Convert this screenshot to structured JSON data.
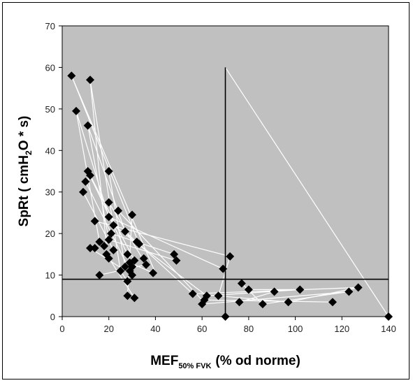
{
  "chart_data": {
    "type": "scatter",
    "xlabel_main": "MEF",
    "xlabel_sub": "50% FVK",
    "xlabel_rest": "(% od norme)",
    "ylabel_pre": "SpRt ( cmH",
    "ylabel_sub": "2",
    "ylabel_post": "O * s)",
    "xlim": [
      0,
      140
    ],
    "ylim": [
      0,
      70
    ],
    "xticks": [
      "0",
      "20",
      "40",
      "60",
      "80",
      "100",
      "120",
      "140"
    ],
    "yticks": [
      "0",
      "10",
      "20",
      "30",
      "40",
      "50",
      "60",
      "70"
    ],
    "grid": false,
    "background_color": "#c0c0c0",
    "marker_color": "#000000",
    "connector_color": "#ffffff",
    "reference_lines": {
      "vertical_x": 70,
      "horizontal_y": 9
    },
    "points": [
      {
        "x": 4,
        "y": 58
      },
      {
        "x": 6,
        "y": 49.5
      },
      {
        "x": 12,
        "y": 57
      },
      {
        "x": 11,
        "y": 46
      },
      {
        "x": 10,
        "y": 32.5
      },
      {
        "x": 9,
        "y": 30
      },
      {
        "x": 11,
        "y": 35
      },
      {
        "x": 12,
        "y": 34
      },
      {
        "x": 20,
        "y": 35
      },
      {
        "x": 20,
        "y": 27.5
      },
      {
        "x": 24,
        "y": 25.5
      },
      {
        "x": 30,
        "y": 24.5
      },
      {
        "x": 14,
        "y": 23
      },
      {
        "x": 20,
        "y": 24
      },
      {
        "x": 22,
        "y": 22
      },
      {
        "x": 27,
        "y": 20.5
      },
      {
        "x": 14,
        "y": 16.5
      },
      {
        "x": 16,
        "y": 18
      },
      {
        "x": 18,
        "y": 17
      },
      {
        "x": 20,
        "y": 18.5
      },
      {
        "x": 21,
        "y": 20
      },
      {
        "x": 12,
        "y": 16.5
      },
      {
        "x": 19,
        "y": 15
      },
      {
        "x": 20,
        "y": 14
      },
      {
        "x": 16,
        "y": 10
      },
      {
        "x": 22,
        "y": 16
      },
      {
        "x": 25,
        "y": 11
      },
      {
        "x": 27,
        "y": 12
      },
      {
        "x": 28,
        "y": 15
      },
      {
        "x": 29,
        "y": 13
      },
      {
        "x": 30,
        "y": 12
      },
      {
        "x": 31,
        "y": 13.5
      },
      {
        "x": 32,
        "y": 18
      },
      {
        "x": 33,
        "y": 17.5
      },
      {
        "x": 30,
        "y": 10
      },
      {
        "x": 28,
        "y": 8.5
      },
      {
        "x": 29,
        "y": 11
      },
      {
        "x": 35,
        "y": 14
      },
      {
        "x": 36,
        "y": 12.5
      },
      {
        "x": 39,
        "y": 10.5
      },
      {
        "x": 28,
        "y": 5
      },
      {
        "x": 31,
        "y": 4.5
      },
      {
        "x": 48,
        "y": 15
      },
      {
        "x": 49,
        "y": 13.5
      },
      {
        "x": 56,
        "y": 5.5
      },
      {
        "x": 60,
        "y": 3
      },
      {
        "x": 61,
        "y": 4
      },
      {
        "x": 62,
        "y": 5
      },
      {
        "x": 67,
        "y": 5
      },
      {
        "x": 69,
        "y": 11.5
      },
      {
        "x": 72,
        "y": 14.5
      },
      {
        "x": 70,
        "y": 0
      },
      {
        "x": 76,
        "y": 3.5
      },
      {
        "x": 77,
        "y": 8
      },
      {
        "x": 80,
        "y": 6.5
      },
      {
        "x": 86,
        "y": 3
      },
      {
        "x": 91,
        "y": 6
      },
      {
        "x": 97,
        "y": 3.5
      },
      {
        "x": 102,
        "y": 6.5
      },
      {
        "x": 116,
        "y": 3.5
      },
      {
        "x": 123,
        "y": 6
      },
      {
        "x": 127,
        "y": 7
      },
      {
        "x": 140,
        "y": 0
      }
    ],
    "connectors": [
      [
        4,
        58,
        40,
        10.5
      ],
      [
        4,
        58,
        33,
        17.5
      ],
      [
        12,
        57,
        19,
        17
      ],
      [
        12,
        57,
        25,
        11
      ],
      [
        11,
        46,
        20,
        18.5
      ],
      [
        11,
        46,
        27,
        20.5
      ],
      [
        6,
        49.5,
        20,
        24
      ],
      [
        6,
        49.5,
        16,
        18
      ],
      [
        10,
        32.5,
        30,
        10
      ],
      [
        9,
        30,
        22,
        16
      ],
      [
        11,
        35,
        28,
        15
      ],
      [
        12,
        34,
        31,
        13.5
      ],
      [
        20,
        35,
        27,
        12
      ],
      [
        20,
        27.5,
        36,
        12.5
      ],
      [
        24,
        25.5,
        60,
        4
      ],
      [
        30,
        24.5,
        28,
        5
      ],
      [
        14,
        23,
        72,
        14.5
      ],
      [
        20,
        24,
        69,
        11.5
      ],
      [
        22,
        22,
        62,
        5
      ],
      [
        27,
        20.5,
        56,
        5.5
      ],
      [
        21,
        20,
        48,
        15
      ],
      [
        20,
        18.5,
        49,
        13.5
      ],
      [
        12,
        16.5,
        30,
        10
      ],
      [
        19,
        15,
        31,
        4.5
      ],
      [
        16,
        10,
        36,
        12.5
      ],
      [
        25,
        11,
        28,
        8.5
      ],
      [
        29,
        13,
        39,
        10.5
      ],
      [
        56,
        5.5,
        127,
        7
      ],
      [
        60,
        3,
        123,
        6
      ],
      [
        61,
        4,
        116,
        3.5
      ],
      [
        62,
        5,
        102,
        6.5
      ],
      [
        67,
        5,
        97,
        3.5
      ],
      [
        76,
        3.5,
        91,
        6
      ],
      [
        77,
        8,
        86,
        3
      ],
      [
        80,
        6.5,
        102,
        6.5
      ],
      [
        86,
        3,
        123,
        6
      ],
      [
        97,
        3.5,
        127,
        7
      ],
      [
        70,
        60,
        140,
        0
      ],
      [
        72,
        14.5,
        67,
        5
      ]
    ]
  }
}
